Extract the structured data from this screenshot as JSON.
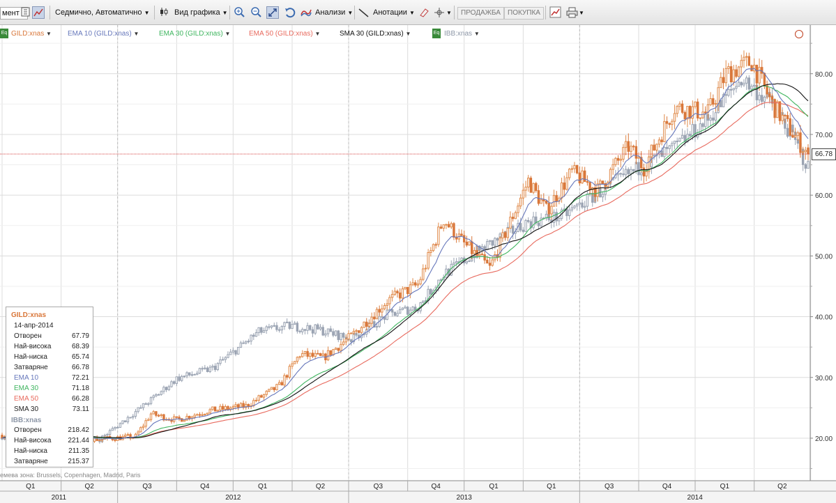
{
  "toolbar": {
    "field_fragment": "мент",
    "period": "Седмично, Автоматично",
    "chart_view": "Вид графика",
    "analyses": "Анализи",
    "annotations": "Анотации",
    "sell": "ПРОДАЖБА",
    "buy": "ПОКУПКА"
  },
  "legend": {
    "main": "GILD:xnas",
    "ema10": "EMA 10 (GILD:xnas)",
    "ema30": "EMA 30 (GILD:xnas)",
    "ema50": "EMA 50 (GILD:xnas)",
    "sma30": "SMA 30 (GILD:xnas)",
    "compare": "IBB:xnas",
    "eq_badge": "Eq"
  },
  "colors": {
    "up": "#8c96a6",
    "down": "#d9773a",
    "ema10": "#6677bb",
    "ema30": "#3fb55f",
    "ema50": "#e86a5e",
    "sma30": "#111111",
    "last_price_line": "#d02020"
  },
  "price_tag": "66.78",
  "timezone_note": "емева зона: Brussels, Copenhagen, Madrid, Paris",
  "infobox": {
    "gild_title": "GILD:xnas",
    "date": "14-апр-2014",
    "open_label": "Отворен",
    "open": "67.79",
    "high_label": "Най-висока",
    "high": "68.39",
    "low_label": "Най-ниска",
    "low": "65.74",
    "close_label": "Затваряне",
    "close": "66.78",
    "ema10_label": "EMA 10",
    "ema10": "72.21",
    "ema30_label": "EMA 30",
    "ema30": "71.18",
    "ema50_label": "EMA 50",
    "ema50": "66.28",
    "sma30_label": "SMA 30",
    "sma30": "73.11",
    "ibb_title": "IBB:xnas",
    "ibb_open_label": "Отворен",
    "ibb_open": "218.42",
    "ibb_high_label": "Най-висока",
    "ibb_high": "221.44",
    "ibb_low_label": "Най-ниска",
    "ibb_low": "211.35",
    "ibb_close_label": "Затваряне",
    "ibb_close": "215.37"
  },
  "chart_data": {
    "type": "candlestick",
    "title": "",
    "ticker": "GILD:xnas",
    "frequency": "weekly",
    "ylim": [
      13,
      88
    ],
    "y_ticks": [
      "20.00",
      "30.00",
      "40.00",
      "50.00",
      "60.00",
      "70.00",
      "80.00"
    ],
    "y_tick_values": [
      20,
      30,
      40,
      50,
      60,
      70,
      80
    ],
    "last_price": 66.78,
    "quarters": [
      "Q1",
      "Q2",
      "Q3",
      "Q4",
      "Q1",
      "Q2",
      "Q3",
      "Q4",
      "Q1",
      "Q1",
      "Q3",
      "Q4",
      "Q1",
      "Q2"
    ],
    "years": [
      "2011",
      "2012",
      "2013",
      "2014"
    ],
    "gild_anchor_closes": [
      {
        "x": 0,
        "y": 20.5
      },
      {
        "x": 28,
        "y": 20.2
      },
      {
        "x": 38,
        "y": 19.8
      },
      {
        "x": 52,
        "y": 20.3
      },
      {
        "x": 58,
        "y": 24.0
      },
      {
        "x": 68,
        "y": 23.0
      },
      {
        "x": 80,
        "y": 24.5
      },
      {
        "x": 95,
        "y": 25.3
      },
      {
        "x": 108,
        "y": 28.6
      },
      {
        "x": 116,
        "y": 33.8
      },
      {
        "x": 125,
        "y": 33.2
      },
      {
        "x": 136,
        "y": 36.8
      },
      {
        "x": 150,
        "y": 42.6
      },
      {
        "x": 162,
        "y": 45.3
      },
      {
        "x": 172,
        "y": 56.0
      },
      {
        "x": 180,
        "y": 52.0
      },
      {
        "x": 190,
        "y": 48.0
      },
      {
        "x": 205,
        "y": 62.4
      },
      {
        "x": 212,
        "y": 57.5
      },
      {
        "x": 222,
        "y": 63.8
      },
      {
        "x": 232,
        "y": 60.8
      },
      {
        "x": 244,
        "y": 68.0
      },
      {
        "x": 250,
        "y": 64.5
      },
      {
        "x": 262,
        "y": 74.5
      },
      {
        "x": 275,
        "y": 73.5
      },
      {
        "x": 282,
        "y": 80.0
      },
      {
        "x": 292,
        "y": 82.0
      },
      {
        "x": 300,
        "y": 75.0
      },
      {
        "x": 310,
        "y": 69.0
      },
      {
        "x": 314,
        "y": 66.78
      }
    ],
    "ibb_anchor_closes": [
      {
        "x": 0,
        "y": 20.2
      },
      {
        "x": 24,
        "y": 20.5
      },
      {
        "x": 38,
        "y": 19.8
      },
      {
        "x": 58,
        "y": 26.3
      },
      {
        "x": 68,
        "y": 29.8
      },
      {
        "x": 82,
        "y": 31.5
      },
      {
        "x": 100,
        "y": 37.5
      },
      {
        "x": 112,
        "y": 38.5
      },
      {
        "x": 124,
        "y": 37.8
      },
      {
        "x": 136,
        "y": 36.3
      },
      {
        "x": 150,
        "y": 40.3
      },
      {
        "x": 162,
        "y": 41.6
      },
      {
        "x": 172,
        "y": 47.0
      },
      {
        "x": 188,
        "y": 51.5
      },
      {
        "x": 205,
        "y": 55.6
      },
      {
        "x": 218,
        "y": 56.5
      },
      {
        "x": 232,
        "y": 60.3
      },
      {
        "x": 244,
        "y": 63.5
      },
      {
        "x": 262,
        "y": 67.8
      },
      {
        "x": 275,
        "y": 72.5
      },
      {
        "x": 288,
        "y": 79.2
      },
      {
        "x": 300,
        "y": 75.0
      },
      {
        "x": 308,
        "y": 69.5
      },
      {
        "x": 314,
        "y": 64.5
      }
    ],
    "series": [
      {
        "name": "EMA 10 (GILD:xnas)",
        "last": 72.21
      },
      {
        "name": "EMA 30 (GILD:xnas)",
        "last": 71.18
      },
      {
        "name": "EMA 50 (GILD:xnas)",
        "last": 66.28
      },
      {
        "name": "SMA 30 (GILD:xnas)",
        "last": 73.11
      }
    ],
    "grid": true,
    "legend_position": "top-left"
  }
}
